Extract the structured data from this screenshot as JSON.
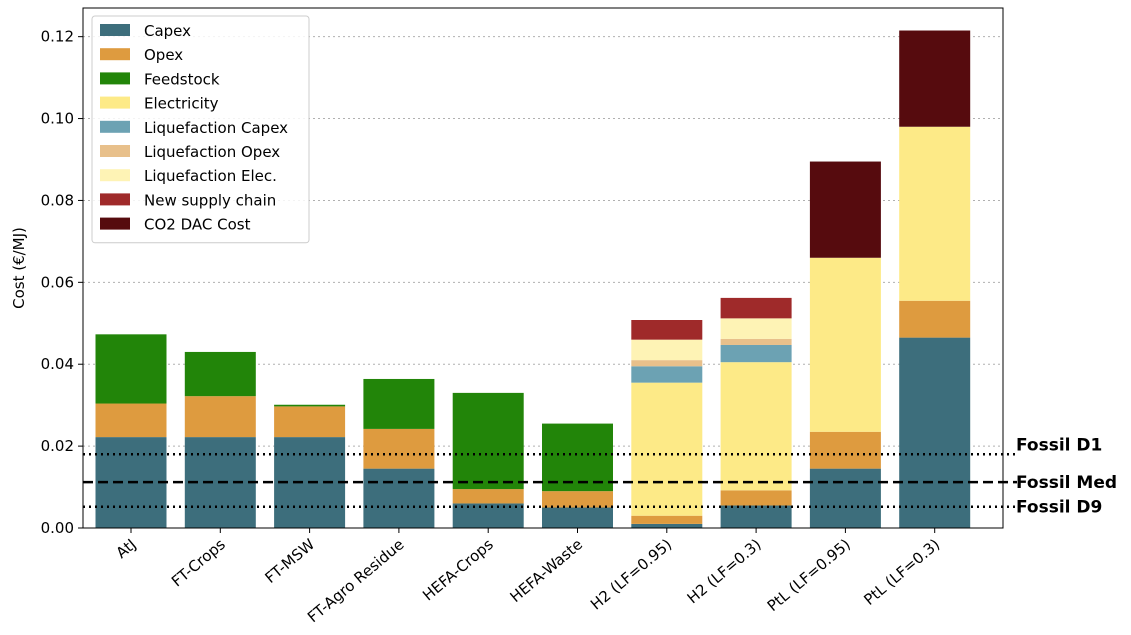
{
  "chart_data": {
    "type": "bar",
    "stacked": true,
    "ylabel": "Cost (€/MJ)",
    "ylim": [
      0,
      0.127
    ],
    "yticks": [
      "0.00",
      "0.02",
      "0.04",
      "0.06",
      "0.08",
      "0.10",
      "0.12"
    ],
    "ytick_values": [
      0,
      0.02,
      0.04,
      0.06,
      0.08,
      0.1,
      0.12
    ],
    "grid": "horizontal dotted",
    "legend_position": "top-left",
    "categories": [
      "AtJ",
      "FT-Crops",
      "FT-MSW",
      "FT-Agro Residue",
      "HEFA-Crops",
      "HEFA-Waste",
      "H2 (LF=0.95)",
      "H2 (LF=0.3)",
      "PtL (LF=0.95)",
      "PtL (LF=0.3)"
    ],
    "series": [
      {
        "name": "Capex",
        "color": "#3d6e7c",
        "values": [
          0.0222,
          0.0222,
          0.0222,
          0.0145,
          0.006,
          0.005,
          0.001,
          0.0055,
          0.0145,
          0.0465
        ]
      },
      {
        "name": "Opex",
        "color": "#de9b3f",
        "values": [
          0.0082,
          0.01,
          0.0075,
          0.0097,
          0.0035,
          0.004,
          0.002,
          0.0037,
          0.009,
          0.009
        ]
      },
      {
        "name": "Feedstock",
        "color": "#228509",
        "values": [
          0.0169,
          0.0108,
          0.0004,
          0.0122,
          0.0235,
          0.0165,
          0,
          0,
          0,
          0
        ]
      },
      {
        "name": "Electricity",
        "color": "#fdea87",
        "values": [
          0,
          0,
          0,
          0,
          0,
          0,
          0.0325,
          0.0313,
          0.0425,
          0.0425
        ]
      },
      {
        "name": "Liquefaction Capex",
        "color": "#6ca2b3",
        "values": [
          0,
          0,
          0,
          0,
          0,
          0,
          0.004,
          0.0042,
          0,
          0
        ]
      },
      {
        "name": "Liquefaction Opex",
        "color": "#e8c08b",
        "values": [
          0,
          0,
          0,
          0,
          0,
          0,
          0.0015,
          0.0015,
          0,
          0
        ]
      },
      {
        "name": "Liquefaction Elec.",
        "color": "#fef3b5",
        "values": [
          0,
          0,
          0,
          0,
          0,
          0,
          0.005,
          0.005,
          0,
          0
        ]
      },
      {
        "name": "New supply chain",
        "color": "#9f2a2a",
        "values": [
          0,
          0,
          0,
          0,
          0,
          0,
          0.0048,
          0.005,
          0,
          0
        ]
      },
      {
        "name": "CO2 DAC Cost",
        "color": "#560b0e",
        "values": [
          0,
          0,
          0,
          0,
          0,
          0,
          0,
          0,
          0.0235,
          0.0235
        ]
      }
    ],
    "reference_lines": [
      {
        "label": "Fossil D1",
        "value": 0.018,
        "style": "dotted"
      },
      {
        "label": "Fossil Med",
        "value": 0.0112,
        "style": "dashed"
      },
      {
        "label": "Fossil D9",
        "value": 0.0052,
        "style": "dotted"
      }
    ]
  }
}
